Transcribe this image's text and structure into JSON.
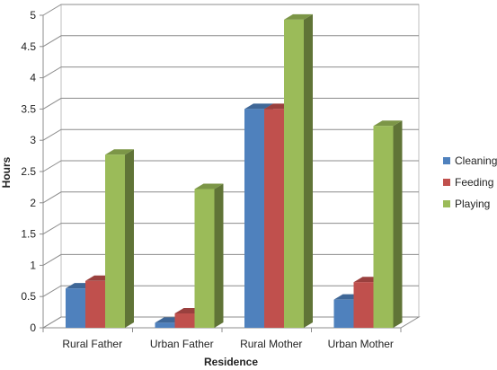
{
  "chart_data": {
    "type": "bar",
    "title": "",
    "xlabel": "Residence",
    "ylabel": "Hours",
    "ylim": [
      0,
      5
    ],
    "yticks": [
      "0",
      "0.5",
      "1",
      "1.5",
      "2",
      "2.5",
      "3",
      "3.5",
      "4",
      "4.5",
      "5"
    ],
    "grid": true,
    "legend_position": "right",
    "categories": [
      "Rural Father",
      "Urban Father",
      "Rural Mother",
      "Urban Mother"
    ],
    "series": [
      {
        "name": "Cleaning",
        "color": "#4F81BD",
        "values": [
          0.63,
          0.08,
          3.5,
          0.45
        ]
      },
      {
        "name": "Feeding",
        "color": "#C0504D",
        "values": [
          0.75,
          0.23,
          3.5,
          0.73
        ]
      },
      {
        "name": "Playing",
        "color": "#9BBB59",
        "values": [
          2.77,
          2.22,
          4.93,
          3.23
        ]
      }
    ]
  }
}
